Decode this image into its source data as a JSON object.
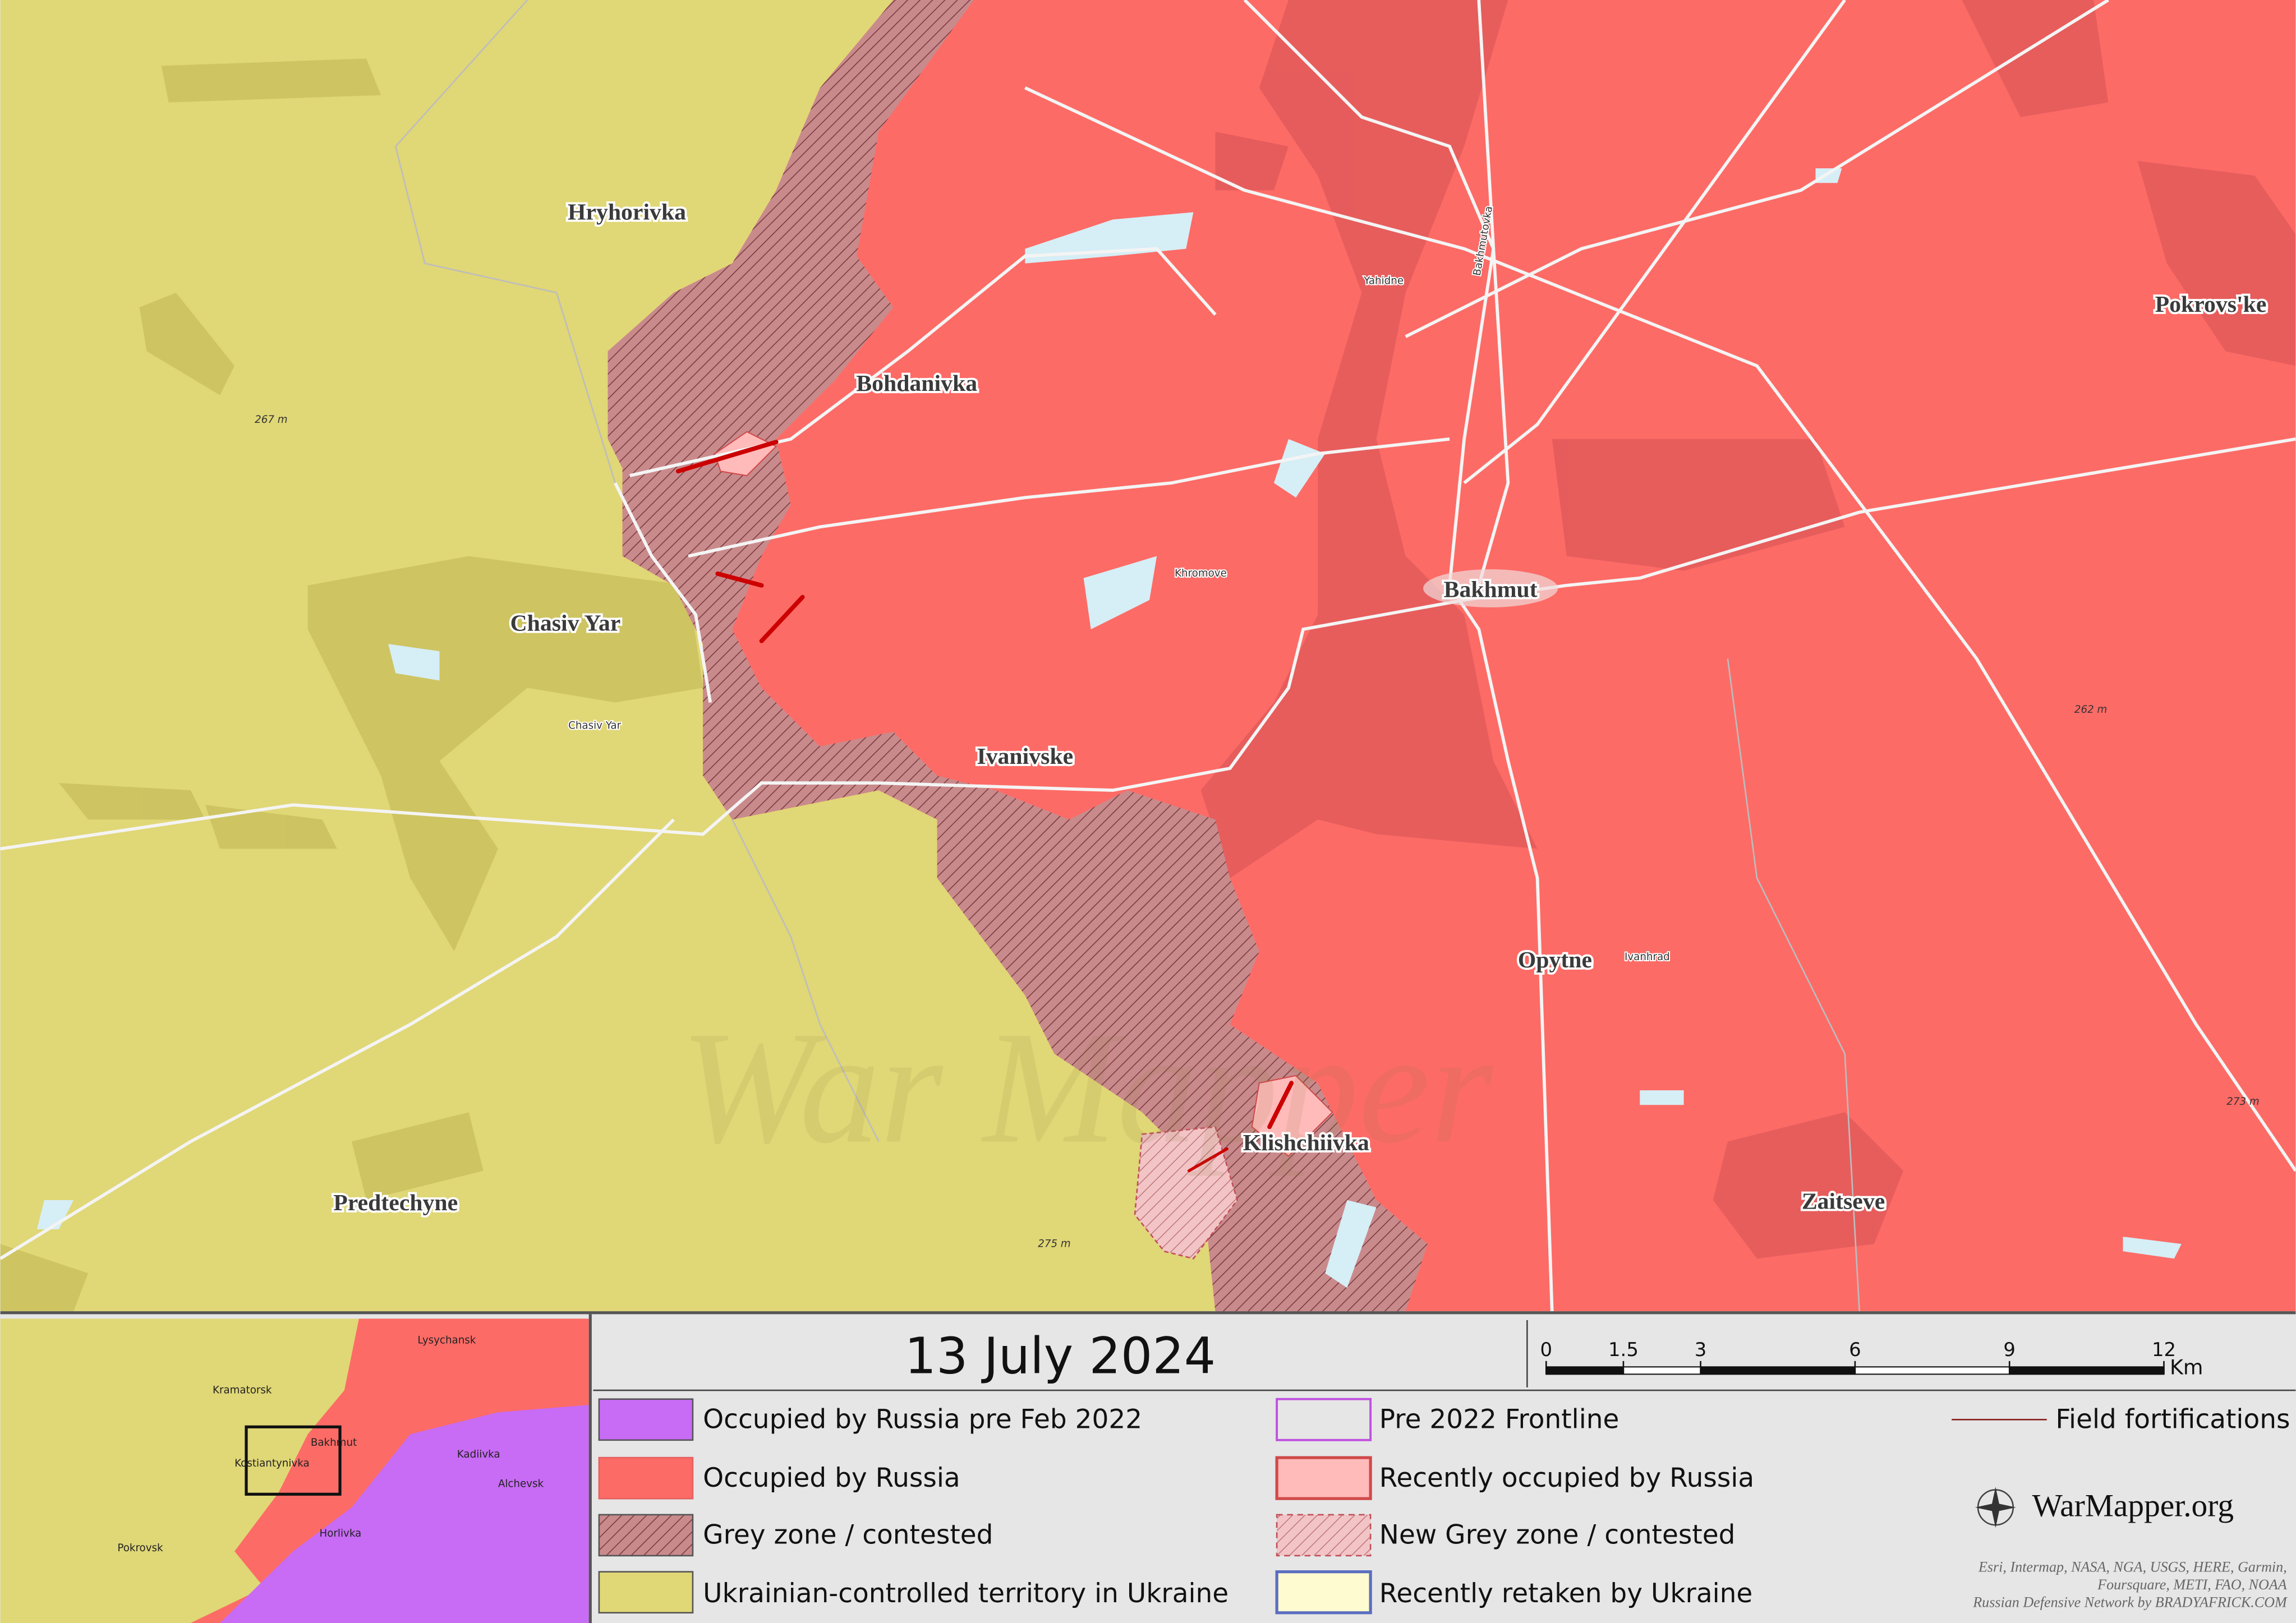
{
  "map": {
    "places": [
      "Hryhorivka",
      "Bohdanivka",
      "Chasiv Yar",
      "Ivanivske",
      "Bakhmut",
      "Pokrovs'ke",
      "Opytne",
      "Klishchiivka",
      "Predtechyne",
      "Zaitseve"
    ],
    "minor_labels": [
      "Yahidne",
      "Khromove",
      "Chasiv Yar",
      "Ivanhrad",
      "Bakhmutovka"
    ],
    "elevations": [
      "267 m",
      "262 m",
      "275 m",
      "273 m"
    ],
    "watermark": "War Mapper"
  },
  "date": "13 July 2024",
  "scale": {
    "ticks": [
      0,
      1.5,
      3,
      6,
      9,
      12
    ],
    "unit": "Km"
  },
  "legend": [
    "Occupied by Russia pre Feb 2022",
    "Occupied by Russia",
    "Grey zone / contested",
    "Ukrainian-controlled territory in Ukraine",
    "Pre 2022 Frontline",
    "Recently occupied by Russia",
    "New Grey zone / contested",
    "Recently retaken by Ukraine",
    "Field fortifications"
  ],
  "brand": "WarMapper.org",
  "credits": [
    "Esri, Intermap, NASA, NGA, USGS, HERE, Garmin,",
    "Foursquare, METI, FAO, NOAA",
    "Russian Defensive Network by BRADYAFRICK.COM"
  ],
  "inset": {
    "labels": [
      "Lysychansk",
      "Kramatorsk",
      "Bakhmut",
      "Kostiantynivka",
      "Kadiivka",
      "Alchevsk",
      "Pokrovsk",
      "Horlivka"
    ]
  }
}
